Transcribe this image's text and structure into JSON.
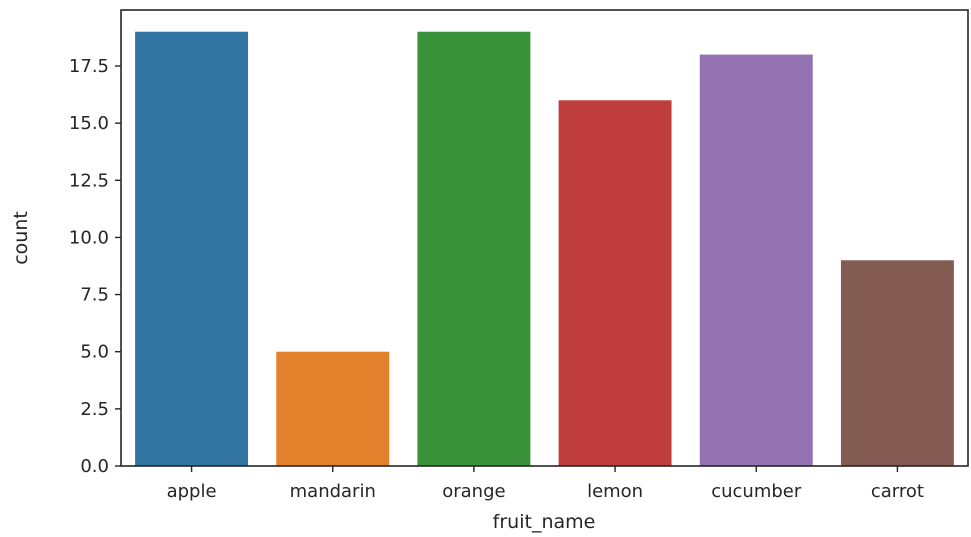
{
  "chart_data": {
    "type": "bar",
    "title": "",
    "xlabel": "fruit_name",
    "ylabel": "count",
    "categories": [
      "apple",
      "mandarin",
      "orange",
      "lemon",
      "cucumber",
      "carrot"
    ],
    "values": [
      19,
      5,
      19,
      16,
      18,
      9
    ],
    "colors": [
      "#3274a1",
      "#e1812c",
      "#3a923a",
      "#c03d3e",
      "#9372b2",
      "#845b53"
    ],
    "ylim": [
      0,
      19.95
    ],
    "yticks": [
      0,
      2.5,
      5,
      7.5,
      10,
      12.5,
      15,
      17.5
    ],
    "ytick_labels": [
      "0.0",
      "2.5",
      "5.0",
      "7.5",
      "10.0",
      "12.5",
      "15.0",
      "17.5"
    ],
    "grid": false,
    "legend": "none"
  }
}
